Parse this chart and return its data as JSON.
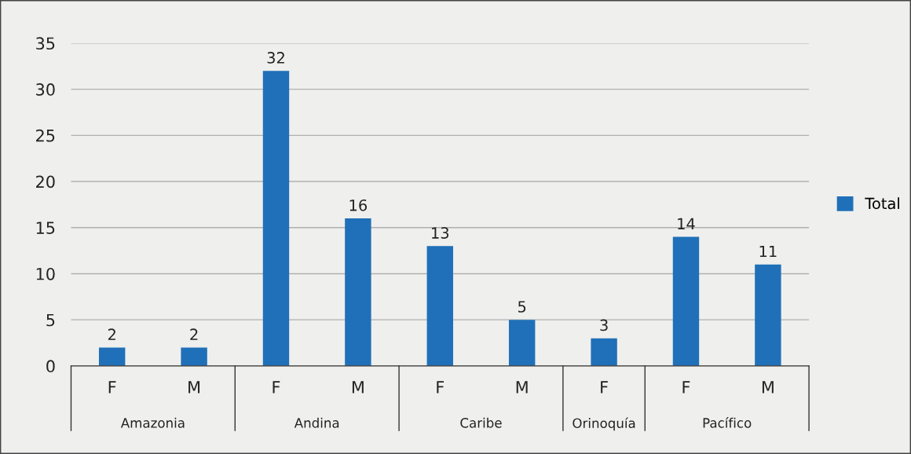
{
  "chart_data": {
    "type": "bar",
    "categories": [
      "F",
      "M",
      "F",
      "M",
      "F",
      "M",
      "F",
      "F",
      "M"
    ],
    "series": [
      {
        "name": "Total",
        "color": "#1f70b8",
        "values": [
          2,
          2,
          32,
          16,
          13,
          5,
          3,
          14,
          11
        ]
      }
    ],
    "annotations": [
      "Amazonia",
      "Andina",
      "Caribe",
      "Orinoquía",
      "Pacífico"
    ],
    "ylim": [
      0,
      35
    ],
    "yticks": [
      0,
      5,
      10,
      15,
      20,
      25,
      30,
      35
    ],
    "grid": "y",
    "legend": "right",
    "data_labels": true
  }
}
